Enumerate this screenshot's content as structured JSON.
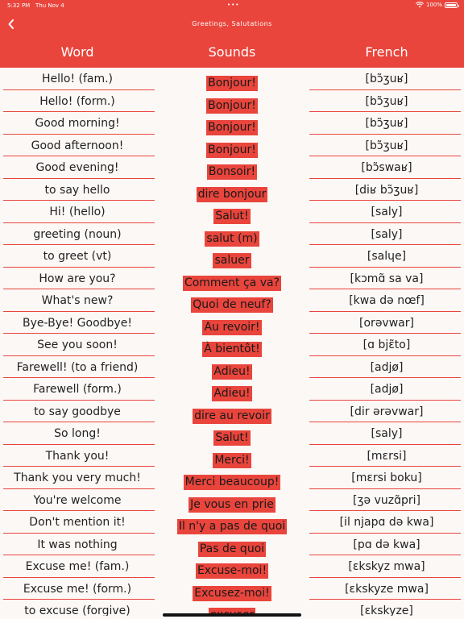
{
  "status": {
    "time": "5:32 PM",
    "date": "Thu Nov 4",
    "dots": "•••",
    "wifi_icon": "wifi-icon",
    "battery_pct": "100%"
  },
  "nav": {
    "back_icon": "chevron-left-icon",
    "title": "Greetings, Salutations"
  },
  "columns": {
    "word": "Word",
    "sounds": "Sounds",
    "french": "French"
  },
  "colors": {
    "accent": "#e9453c",
    "background": "#fcf8f6"
  },
  "rows": [
    {
      "word": "Hello! (fam.)",
      "sound": "Bonjour!",
      "french": "[bɔ̃ʒuʁ]"
    },
    {
      "word": "Hello! (form.)",
      "sound": "Bonjour!",
      "french": "[bɔ̃ʒuʁ]"
    },
    {
      "word": "Good morning!",
      "sound": "Bonjour!",
      "french": "[bɔ̃ʒuʁ]"
    },
    {
      "word": "Good afternoon!",
      "sound": "Bonjour!",
      "french": "[bɔ̃ʒuʁ]"
    },
    {
      "word": "Good evening!",
      "sound": "Bonsoir!",
      "french": "[bɔ̃swaʁ]"
    },
    {
      "word": "to say hello",
      "sound": "dire bonjour",
      "french": "[diʁ bɔ̃ʒuʁ]"
    },
    {
      "word": "Hi! (hello)",
      "sound": "Salut!",
      "french": "[saly]"
    },
    {
      "word": "greeting (noun)",
      "sound": "salut (m)",
      "french": "[saly]"
    },
    {
      "word": "to greet (vt)",
      "sound": "saluer",
      "french": "[salɥe]"
    },
    {
      "word": "How are you?",
      "sound": "Comment ça va?",
      "french": "[kɔmɑ̃ sa va]"
    },
    {
      "word": "What's new?",
      "sound": "Quoi de neuf?",
      "french": "[kwa də nœf]"
    },
    {
      "word": "Bye-Bye! Goodbye!",
      "sound": "Au revoir!",
      "french": "[orəvwar]"
    },
    {
      "word": "See you soon!",
      "sound": "À bientôt!",
      "french": "[ɑ bjɛ̃to]"
    },
    {
      "word": "Farewell! (to a friend)",
      "sound": "Adieu!",
      "french": "[adjø]"
    },
    {
      "word": "Farewell (form.)",
      "sound": "Adieu!",
      "french": "[adjø]"
    },
    {
      "word": "to say goodbye",
      "sound": "dire au revoir",
      "french": "[dir ərəvwar]"
    },
    {
      "word": "So long!",
      "sound": "Salut!",
      "french": "[saly]"
    },
    {
      "word": "Thank you!",
      "sound": "Merci!",
      "french": "[mɛrsi]"
    },
    {
      "word": "Thank you very much!",
      "sound": "Merci beaucoup!",
      "french": "[mɛrsi boku]"
    },
    {
      "word": "You're welcome",
      "sound": "Je vous en prie",
      "french": "[ʒə vuzɑ̃pri]"
    },
    {
      "word": "Don't mention it!",
      "sound": "Il n'y a pas de quoi",
      "french": "[il njapɑ də kwa]"
    },
    {
      "word": "It was nothing",
      "sound": "Pas de quoi",
      "french": "[pɑ də kwa]"
    },
    {
      "word": "Excuse me! (fam.)",
      "sound": "Excuse-moi!",
      "french": "[ɛkskyz mwa]"
    },
    {
      "word": "Excuse me! (form.)",
      "sound": "Excusez-moi!",
      "french": "[ɛkskyze mwa]"
    },
    {
      "word": "to excuse (forgive)",
      "sound": "excuser",
      "french": "[ɛkskyze]"
    }
  ]
}
